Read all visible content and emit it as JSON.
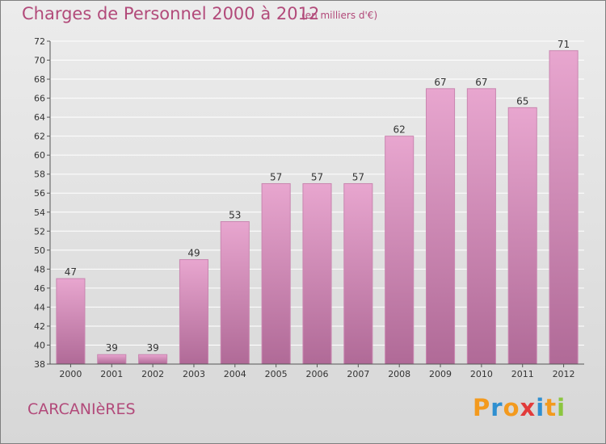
{
  "title": "Charges de Personnel 2000 à 2012",
  "subtitle": "(en milliers d'€)",
  "commune": "CARCANIèRES",
  "logo": {
    "text": "Proxiti",
    "letters": [
      {
        "ch": "P",
        "color": "#f39a1e"
      },
      {
        "ch": "r",
        "color": "#2f8fd0"
      },
      {
        "ch": "o",
        "color": "#f39a1e"
      },
      {
        "ch": "x",
        "color": "#e23b3b"
      },
      {
        "ch": "i",
        "color": "#2f8fd0"
      },
      {
        "ch": "t",
        "color": "#f39a1e"
      },
      {
        "ch": "i",
        "color": "#8cc63f"
      }
    ]
  },
  "colors": {
    "accent": "#b24a7a",
    "bar_top": "#e8a6cf",
    "bar_bottom": "#b06a97",
    "bar_edge": "#c986b0",
    "grid": "#ffffff",
    "axis_text": "#333333"
  },
  "chart_data": {
    "type": "bar",
    "categories": [
      "2000",
      "2001",
      "2002",
      "2003",
      "2004",
      "2005",
      "2006",
      "2007",
      "2008",
      "2009",
      "2010",
      "2011",
      "2012"
    ],
    "values": [
      47,
      39,
      39,
      49,
      53,
      57,
      57,
      57,
      62,
      67,
      67,
      65,
      71
    ],
    "ylim": [
      38,
      72
    ],
    "yticks": [
      38,
      40,
      42,
      44,
      46,
      48,
      50,
      52,
      54,
      56,
      58,
      60,
      62,
      64,
      66,
      68,
      70,
      72
    ],
    "data_labels": true,
    "grid": true,
    "xlabel": "",
    "ylabel": ""
  }
}
